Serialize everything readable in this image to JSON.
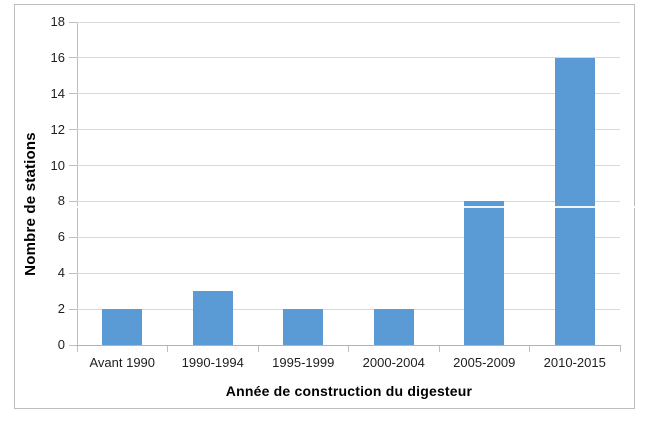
{
  "chart_data": {
    "type": "bar",
    "title": "",
    "categories": [
      "Avant 1990",
      "1990-1994",
      "1995-1999",
      "2000-2004",
      "2005-2009",
      "2010-2015"
    ],
    "values": [
      2,
      3,
      2,
      2,
      8,
      16
    ],
    "xlabel": "Année de construction du digesteur",
    "ylabel": "Nombre de stations",
    "ylim": [
      0,
      18
    ],
    "yticks": [
      0,
      2,
      4,
      6,
      8,
      10,
      12,
      14,
      16,
      18
    ],
    "grid": "horizontal-only",
    "legend": "none",
    "bar_color": "#5b9bd5"
  },
  "colors": {
    "bar": "#5b9bd5",
    "gridline": "#d9d9d9",
    "axis": "#bfbfbf",
    "tick_text": "#1f1f1f",
    "title_text": "#000000",
    "frame_border": "#bdbdbd",
    "background": "#ffffff"
  }
}
